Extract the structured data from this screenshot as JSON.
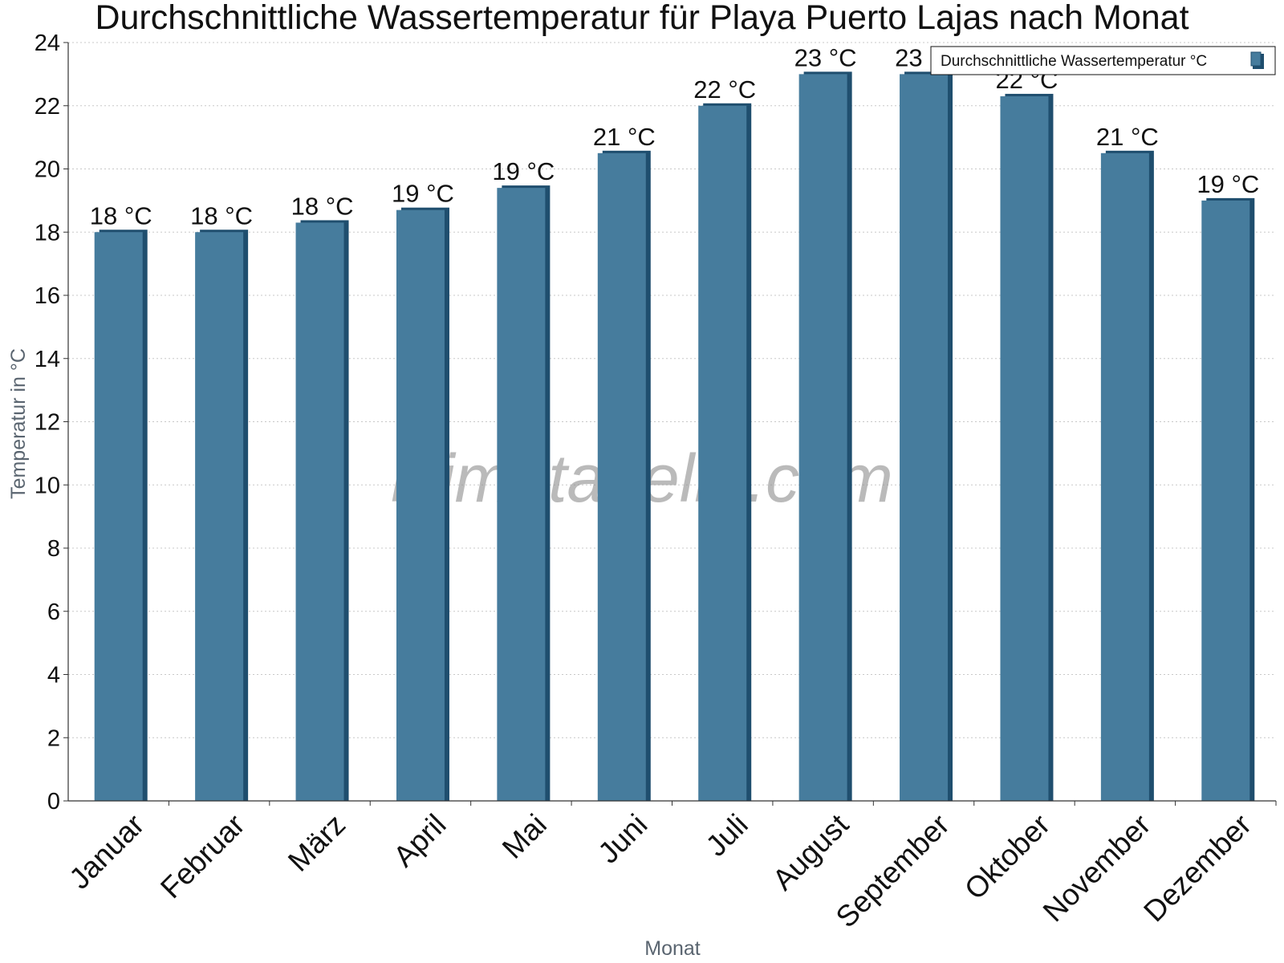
{
  "chart_data": {
    "type": "bar",
    "title": "Durchschnittliche Wassertemperatur für Playa Puerto Lajas nach Monat",
    "xlabel": "Monat",
    "ylabel": "Temperatur in °C",
    "ylim": [
      0,
      24
    ],
    "y_ticks": [
      "0",
      "2",
      "4",
      "6",
      "8",
      "10",
      "12",
      "14",
      "16",
      "18",
      "20",
      "22",
      "24"
    ],
    "grid": true,
    "legend_position": "top-right",
    "categories": [
      "Januar",
      "Februar",
      "März",
      "April",
      "Mai",
      "Juni",
      "Juli",
      "August",
      "September",
      "Oktober",
      "November",
      "Dezember"
    ],
    "series": [
      {
        "name": "Durchschnittliche Wassertemperatur °C",
        "color": "#467c9d",
        "edge_color": "#1f4e6e",
        "values": [
          18.0,
          18.0,
          18.3,
          18.7,
          19.4,
          20.5,
          22.0,
          23.0,
          23.0,
          22.3,
          20.5,
          19.0
        ],
        "data_labels": [
          "18 °C",
          "18 °C",
          "18 °C",
          "19 °C",
          "19 °C",
          "21 °C",
          "22 °C",
          "23 °C",
          "23 °C",
          "22 °C",
          "21 °C",
          "19 °C"
        ]
      }
    ],
    "watermark": "klimatabelle.com"
  }
}
